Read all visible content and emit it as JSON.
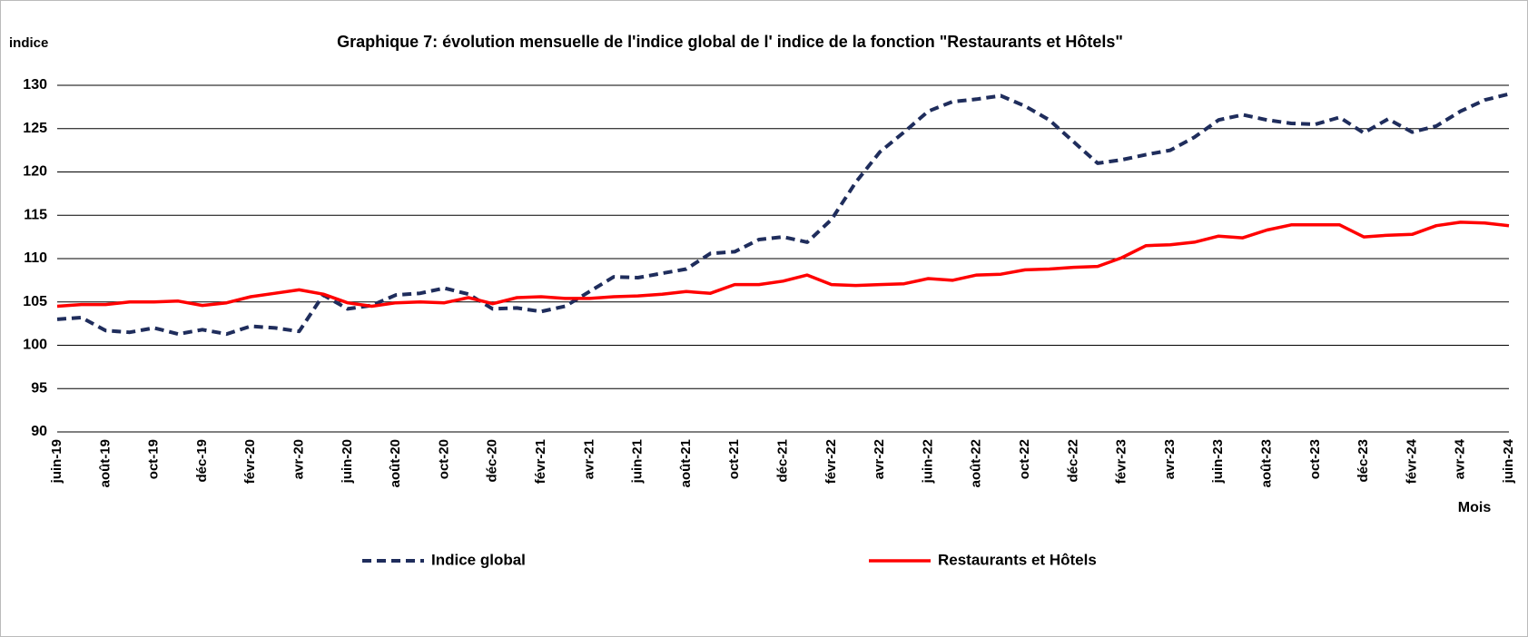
{
  "chart_data": {
    "type": "line",
    "title": "Graphique 7: évolution mensuelle de l'indice global de l' indice de la fonction \"Restaurants et Hôtels\"",
    "y_label": "indice",
    "x_label": "Mois",
    "categories": [
      "juin-19",
      null,
      "août-19",
      null,
      "oct-19",
      null,
      "déc-19",
      null,
      "févr-20",
      null,
      "avr-20",
      null,
      "juin-20",
      null,
      "août-20",
      null,
      "oct-20",
      null,
      "déc-20",
      null,
      "févr-21",
      null,
      "avr-21",
      null,
      "juin-21",
      null,
      "août-21",
      null,
      "oct-21",
      null,
      "déc-21",
      null,
      "févr-22",
      null,
      "avr-22",
      null,
      "juin-22",
      null,
      "août-22",
      null,
      "oct-22",
      null,
      "déc-22",
      null,
      "févr-23",
      null,
      "avr-23",
      null,
      "juin-23",
      null,
      "août-23",
      null,
      "oct-23",
      null,
      "déc-23",
      null,
      "févr-24",
      null,
      "avr-24",
      null,
      "juin-24"
    ],
    "series": [
      {
        "name": "Indice global",
        "color": "#1f2d5c",
        "dash": true,
        "values": [
          103.0,
          103.2,
          101.7,
          101.5,
          102.0,
          101.3,
          101.8,
          101.3,
          102.2,
          102.0,
          101.6,
          105.8,
          104.2,
          104.6,
          105.8,
          106.0,
          106.6,
          105.9,
          104.2,
          104.3,
          103.9,
          104.5,
          106.2,
          107.9,
          107.8,
          108.3,
          108.8,
          110.6,
          110.8,
          112.2,
          112.5,
          111.9,
          114.5,
          118.8,
          122.3,
          124.6,
          127.0,
          128.1,
          128.4,
          128.8,
          127.6,
          126.0,
          123.5,
          121.0,
          121.4,
          122.0,
          122.5,
          124.0,
          126.0,
          126.6,
          126.0,
          125.6,
          125.5,
          126.3,
          124.5,
          126.1,
          124.6,
          125.3,
          127.0,
          128.3,
          129.0
        ]
      },
      {
        "name": "Restaurants et Hôtels",
        "color": "#ff0000",
        "dash": false,
        "values": [
          104.5,
          104.7,
          104.7,
          105.0,
          105.0,
          105.1,
          104.6,
          104.9,
          105.6,
          106.0,
          106.4,
          105.9,
          104.9,
          104.5,
          104.9,
          105.0,
          104.9,
          105.5,
          104.8,
          105.5,
          105.6,
          105.4,
          105.4,
          105.6,
          105.7,
          105.9,
          106.2,
          106.0,
          107.0,
          107.0,
          107.4,
          108.1,
          107.0,
          106.9,
          107.0,
          107.1,
          107.7,
          107.5,
          108.1,
          108.2,
          108.7,
          108.8,
          109.0,
          109.1,
          110.1,
          111.5,
          111.6,
          111.9,
          112.6,
          112.4,
          113.3,
          113.9,
          113.9,
          113.9,
          112.5,
          112.7,
          112.8,
          113.8,
          114.2,
          114.1,
          113.8
        ]
      }
    ],
    "ylim": [
      90,
      130
    ],
    "yticks": [
      90,
      95,
      100,
      105,
      110,
      115,
      120,
      125,
      130
    ],
    "grid": true,
    "legend": "bottom"
  }
}
